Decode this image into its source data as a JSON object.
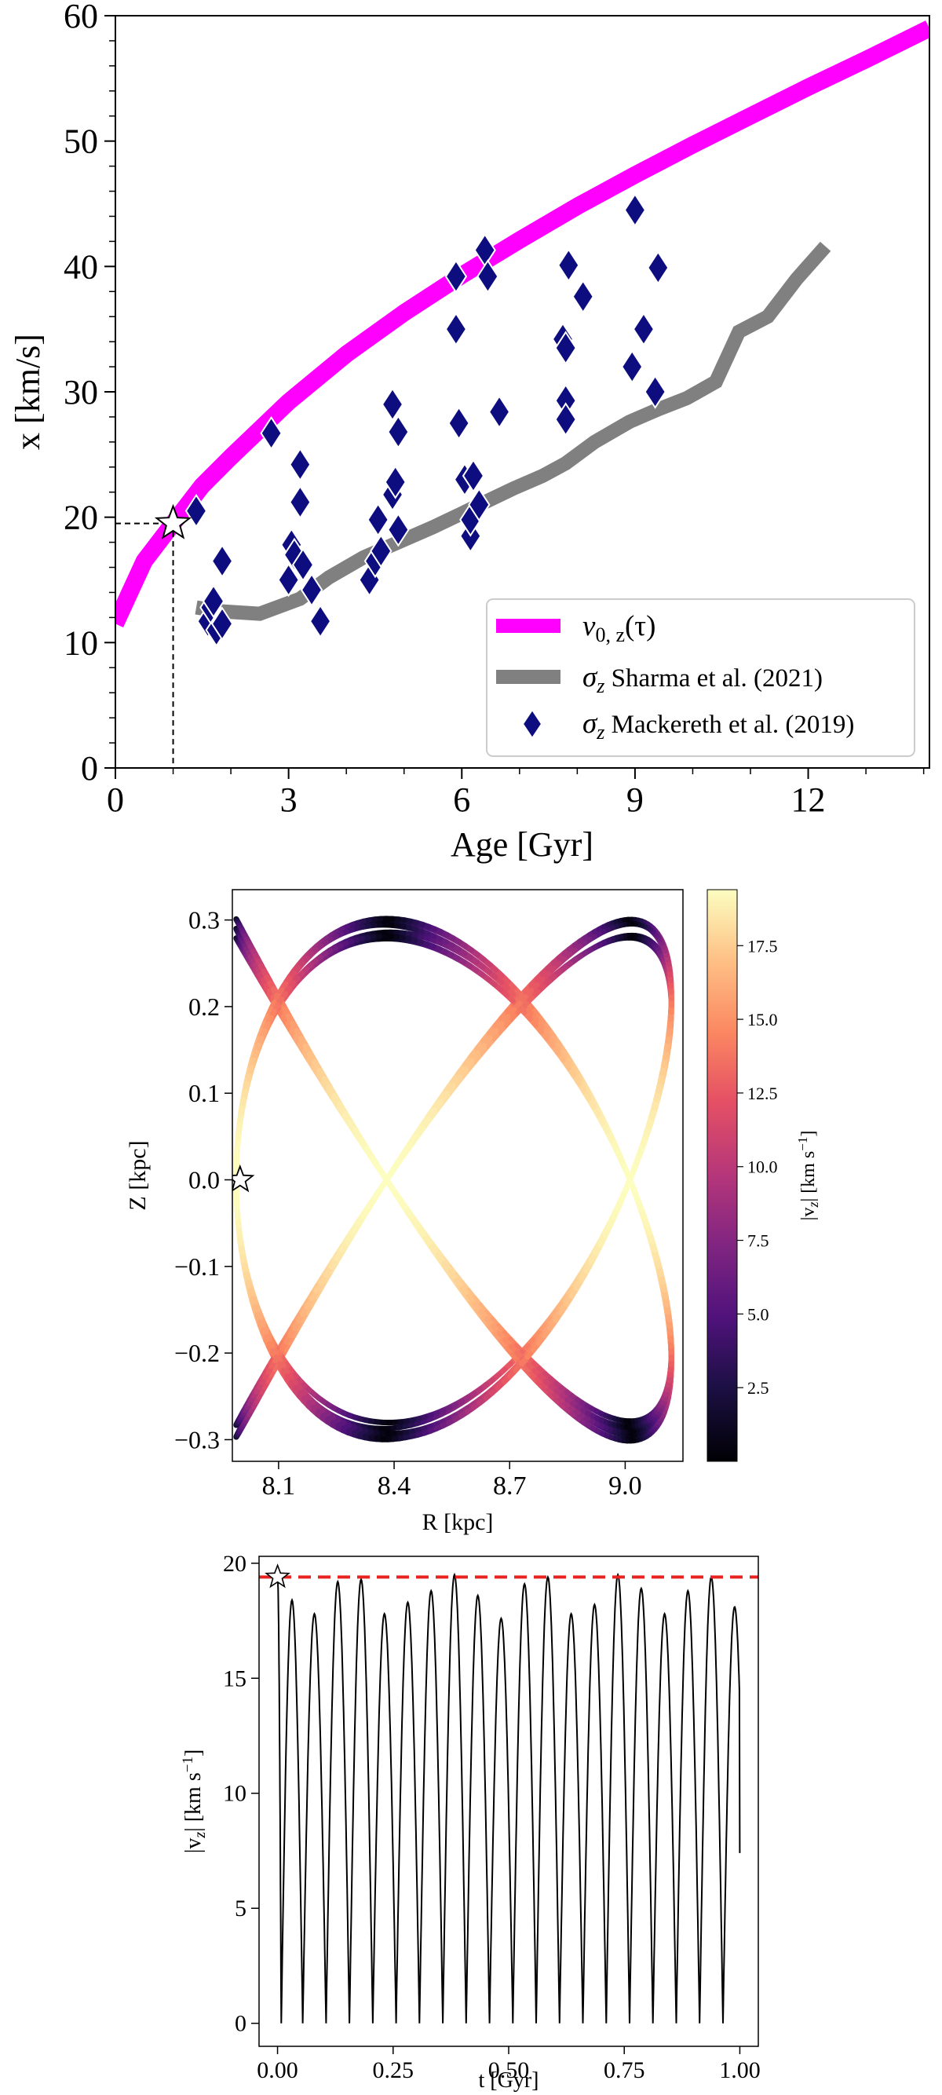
{
  "colors": {
    "magenta": "#ff00ff",
    "gray": "#808080",
    "navy": "#0d0d80",
    "red_dashed": "#e8231f",
    "star_fill": "#ffffff"
  },
  "chart_data": [
    {
      "type": "line",
      "panel": "top",
      "xlabel": "Age [Gyr]",
      "ylabel": "x [km/s]",
      "xlim": [
        0,
        14.1
      ],
      "ylim": [
        0,
        60
      ],
      "xticks": [
        0,
        3,
        6,
        9,
        12
      ],
      "yticks": [
        0,
        10,
        20,
        30,
        40,
        50,
        60
      ],
      "legend_position": "lower-right",
      "legend": [
        {
          "prefix": "v",
          "sub": "0, z",
          "suffix": "(τ)"
        },
        {
          "prefix": "σ",
          "sub": "z",
          "suffix": " Sharma et al. (2021)"
        },
        {
          "prefix": "σ",
          "sub": "z",
          "suffix": " Mackereth et al. (2019)"
        }
      ],
      "series": [
        {
          "name": "v0z(tau)",
          "style": "magenta-thick",
          "x": [
            0,
            0.5,
            1,
            1.5,
            2,
            3,
            4,
            5,
            6,
            7,
            8,
            9,
            10,
            11,
            12,
            13,
            14.1
          ],
          "values": [
            11.5,
            16.5,
            19.5,
            22.5,
            24.8,
            29.2,
            33,
            36.3,
            39.3,
            42.1,
            44.8,
            47.3,
            49.7,
            52,
            54.3,
            56.5,
            59
          ]
        },
        {
          "name": "sigma_z Sharma et al. (2021)",
          "style": "gray-thick",
          "x": [
            1.4,
            1.8,
            2.5,
            3.2,
            3.7,
            4.3,
            4.9,
            5.5,
            6.0,
            6.4,
            6.9,
            7.4,
            7.8,
            8.3,
            8.9,
            9.4,
            9.9,
            10.4,
            10.8,
            11.3,
            11.8,
            12.3
          ],
          "values": [
            12.8,
            12.5,
            12.3,
            13.5,
            15.2,
            16.8,
            18,
            19.2,
            20.3,
            21.2,
            22.3,
            23.3,
            24.3,
            26,
            27.6,
            28.6,
            29.5,
            30.8,
            34.8,
            36,
            39,
            41.6
          ]
        }
      ],
      "scatter": {
        "name": "sigma_z Mackereth et al. (2019)",
        "points": [
          [
            1.4,
            20.5
          ],
          [
            1.6,
            11.7
          ],
          [
            1.65,
            12.8
          ],
          [
            1.7,
            13.3
          ],
          [
            1.75,
            11.0
          ],
          [
            1.85,
            11.5
          ],
          [
            1.85,
            16.5
          ],
          [
            2.7,
            26.7
          ],
          [
            3.0,
            15.0
          ],
          [
            3.05,
            17.8
          ],
          [
            3.1,
            17.0
          ],
          [
            3.2,
            24.2
          ],
          [
            3.2,
            21.2
          ],
          [
            3.25,
            16.2
          ],
          [
            3.4,
            14.2
          ],
          [
            3.55,
            11.7
          ],
          [
            4.4,
            15.0
          ],
          [
            4.5,
            16.5
          ],
          [
            4.55,
            19.8
          ],
          [
            4.6,
            17.3
          ],
          [
            4.8,
            21.8
          ],
          [
            4.8,
            29.0
          ],
          [
            4.85,
            22.8
          ],
          [
            4.9,
            26.8
          ],
          [
            4.9,
            19.0
          ],
          [
            5.9,
            39.2
          ],
          [
            5.9,
            35.0
          ],
          [
            5.95,
            27.5
          ],
          [
            6.05,
            23.0
          ],
          [
            6.15,
            18.5
          ],
          [
            6.15,
            19.8
          ],
          [
            6.2,
            23.3
          ],
          [
            6.3,
            21.0
          ],
          [
            6.4,
            41.3
          ],
          [
            6.45,
            39.2
          ],
          [
            6.65,
            28.4
          ],
          [
            7.75,
            34.2
          ],
          [
            7.8,
            33.5
          ],
          [
            7.8,
            29.3
          ],
          [
            7.8,
            27.8
          ],
          [
            7.85,
            40.1
          ],
          [
            8.1,
            37.6
          ],
          [
            9.0,
            44.5
          ],
          [
            8.95,
            32.0
          ],
          [
            9.15,
            35.0
          ],
          [
            9.4,
            39.9
          ],
          [
            9.35,
            30.0
          ]
        ]
      },
      "marker": {
        "x": 1.0,
        "y": 19.5
      }
    },
    {
      "type": "scatter",
      "panel": "middle",
      "xlabel": "R [kpc]",
      "ylabel": "Z [kpc]",
      "xlim": [
        7.98,
        9.15
      ],
      "ylim": [
        -0.325,
        0.335
      ],
      "xticks": [
        "8.1",
        "8.4",
        "8.7",
        "9.0"
      ],
      "yticks": [
        "0.3",
        "0.2",
        "0.1",
        "0.0",
        "−0.1",
        "−0.2",
        "−0.3"
      ],
      "colorbar": {
        "label_prefix": "|v",
        "label_sub": "z",
        "label_suffix": "| [km s",
        "label_sup": "−1",
        "label_end": "]",
        "ticks": [
          "17.5",
          "15.0",
          "12.5",
          "10.0",
          "7.5",
          "5.0",
          "2.5"
        ],
        "range": [
          0,
          19.4
        ],
        "colormap": "magma"
      },
      "orbit": {
        "R_min": 7.99,
        "R_max": 9.12,
        "Z_max": 0.29,
        "R_period_ratio": 1.25,
        "Z_periods": 13.5
      },
      "marker": {
        "R": 8.0,
        "Z": 0.0
      }
    },
    {
      "type": "line",
      "panel": "bottom",
      "xlabel": "t [Gyr]",
      "ylabel_prefix": "|v",
      "ylabel_sub": "z",
      "ylabel_suffix": "| [km s",
      "ylabel_sup": "−1",
      "ylabel_end": "]",
      "xlim": [
        -0.04,
        1.04
      ],
      "ylim": [
        -1,
        20.3
      ],
      "xticks": [
        "0.00",
        "0.25",
        "0.50",
        "0.75",
        "1.00"
      ],
      "yticks": [
        "0",
        "5",
        "10",
        "15",
        "20"
      ],
      "peaks": [
        19.4,
        18.4,
        17.8,
        19.2,
        19.3,
        17.8,
        18.3,
        18.8,
        19.5,
        18.6,
        17.6,
        19.1,
        19.4,
        17.8,
        18.2,
        19.5,
        18.9,
        17.8,
        18.8,
        19.4,
        18.1
      ],
      "zero_times": [
        0.0,
        0.0505,
        0.101,
        0.1515,
        0.202,
        0.2525,
        0.303,
        0.3535,
        0.404,
        0.4545,
        0.505,
        0.5555,
        0.606,
        0.6565,
        0.707,
        0.7575,
        0.808,
        0.8585,
        0.909,
        0.9595
      ],
      "end_value": 7.4,
      "reference_line": 19.4,
      "marker": {
        "t": 0.0,
        "v": 19.4
      }
    }
  ]
}
